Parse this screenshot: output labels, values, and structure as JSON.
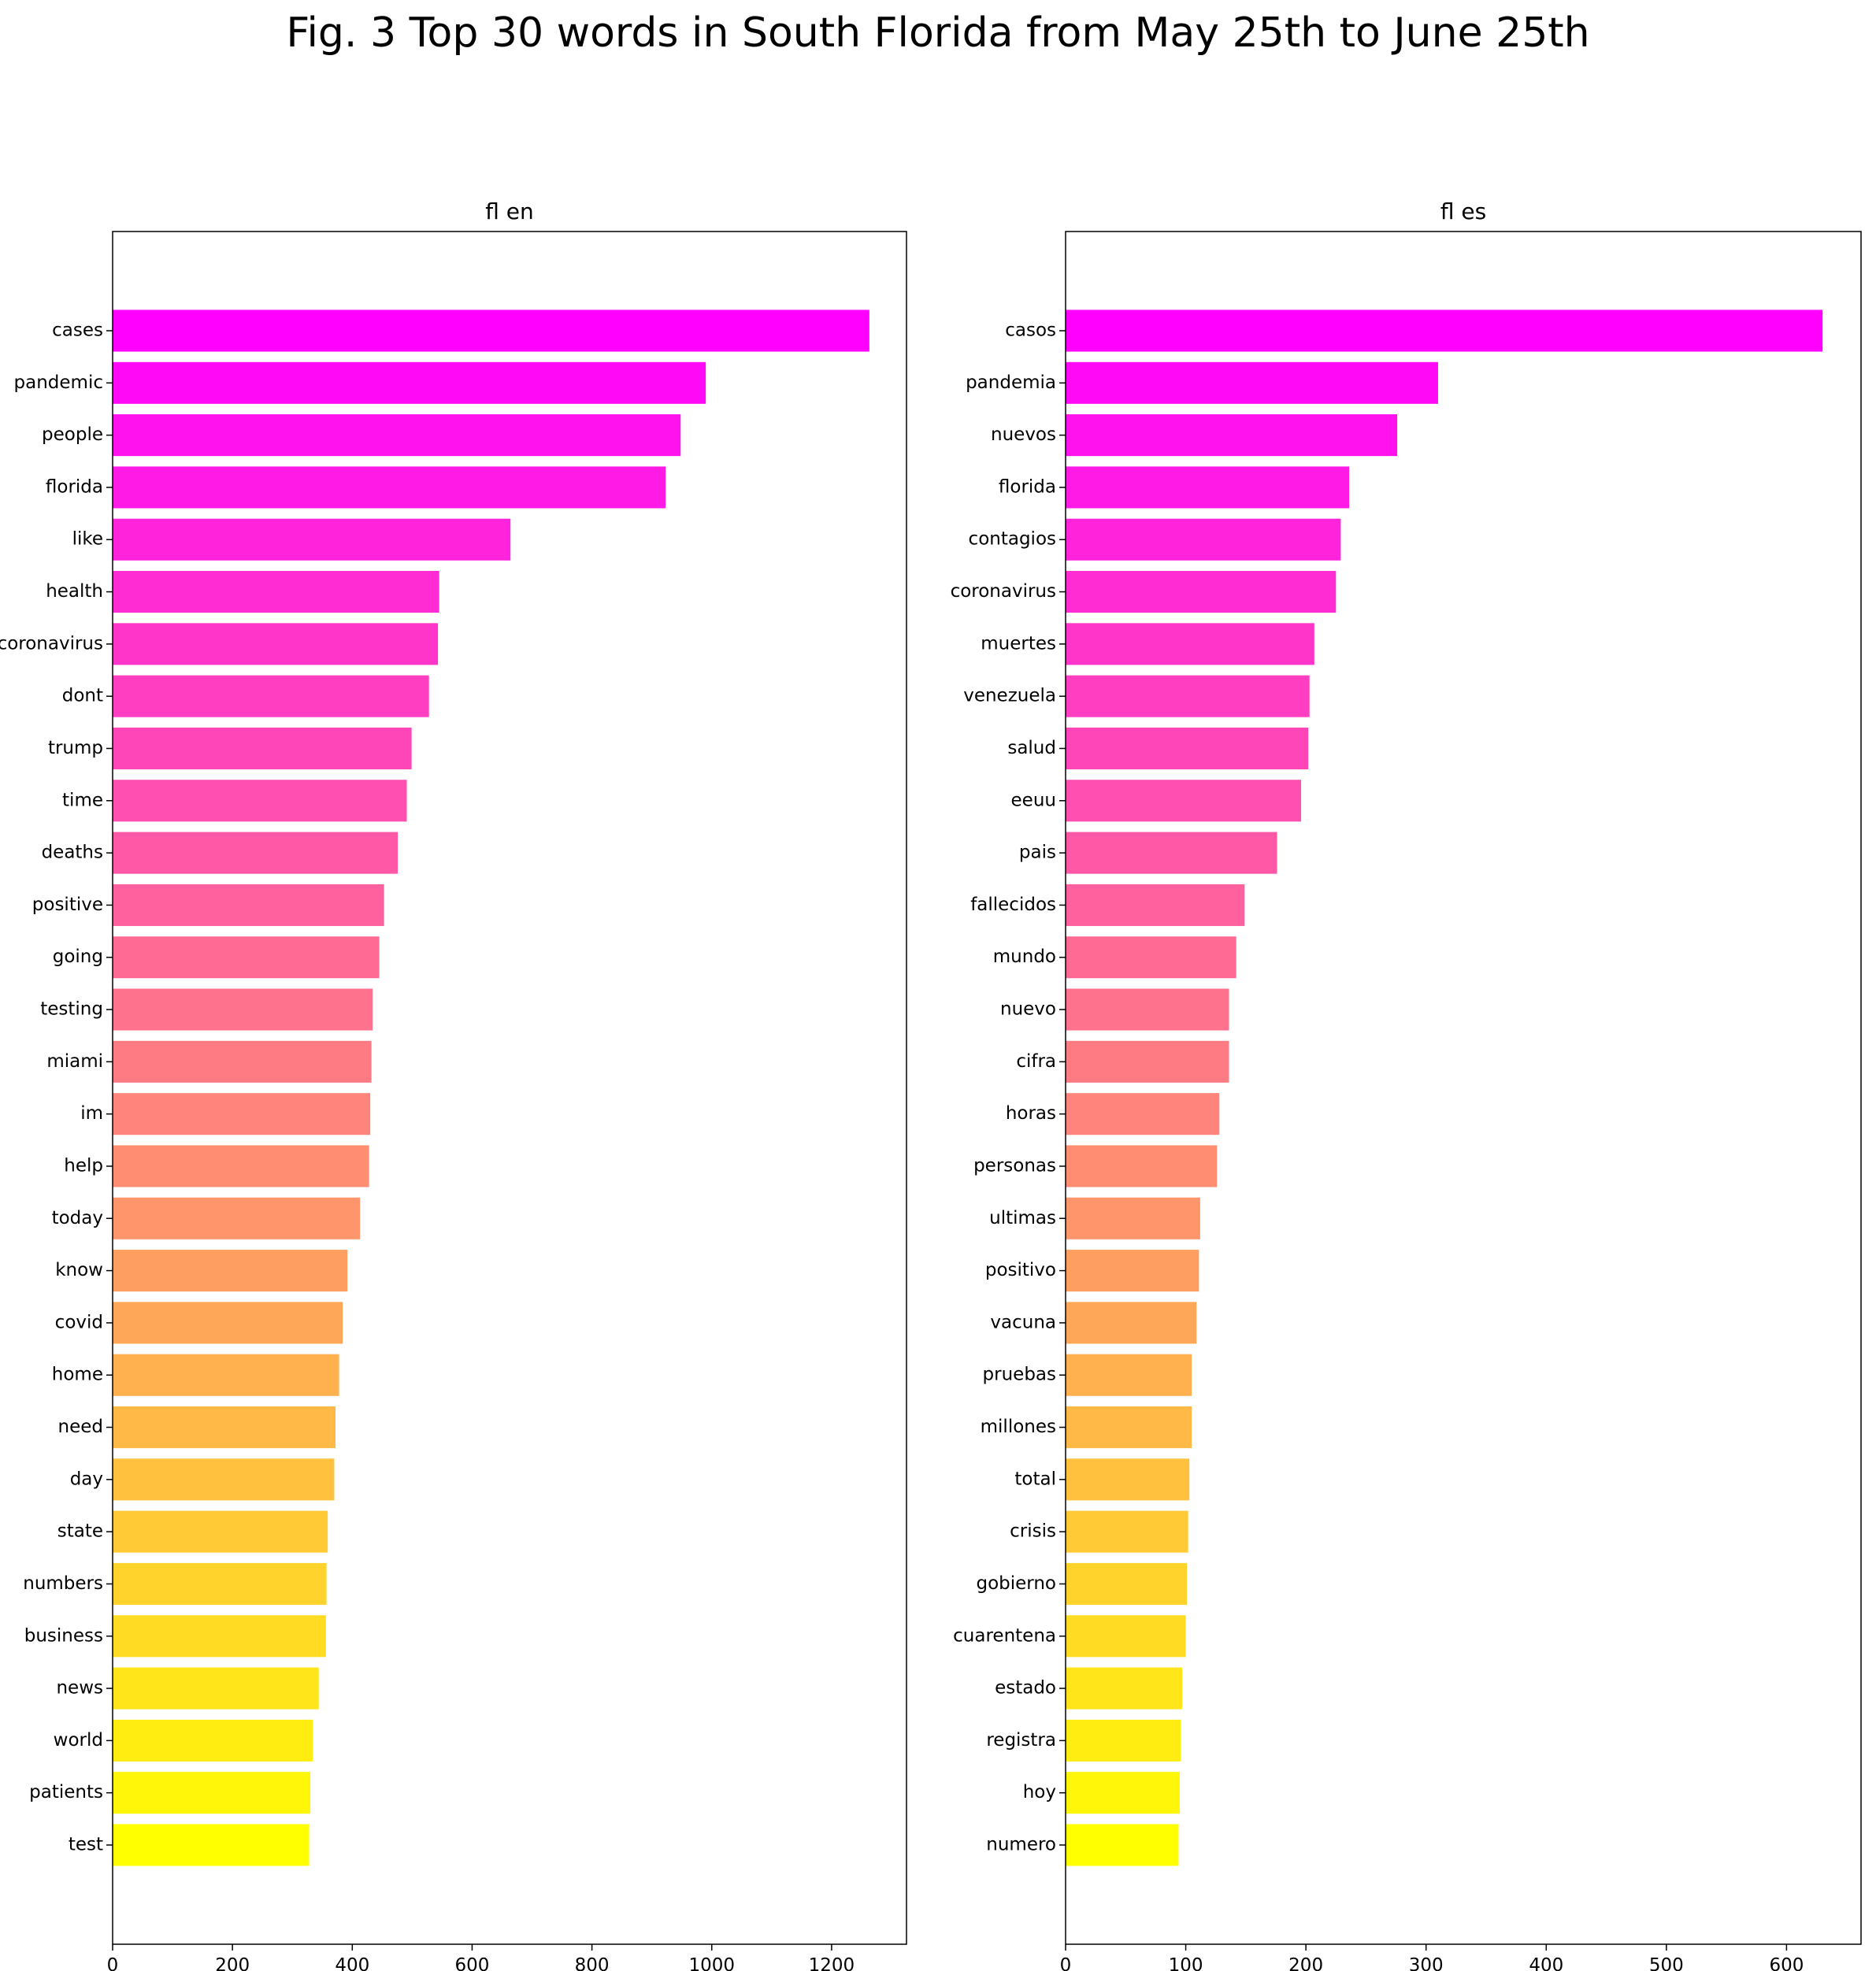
{
  "title": "Fig. 3 Top 30 words in South Florida from May 25th to June 25th",
  "chart_data": [
    {
      "type": "barh",
      "title": "fl en",
      "categories": [
        "cases",
        "pandemic",
        "people",
        "florida",
        "like",
        "health",
        "coronavirus",
        "dont",
        "trump",
        "time",
        "deaths",
        "positive",
        "going",
        "testing",
        "miami",
        "im",
        "help",
        "today",
        "know",
        "covid",
        "home",
        "need",
        "day",
        "state",
        "numbers",
        "business",
        "news",
        "world",
        "patients",
        "test"
      ],
      "values": [
        1263,
        990,
        948,
        923,
        664,
        545,
        543,
        528,
        499,
        491,
        476,
        453,
        445,
        434,
        432,
        430,
        428,
        413,
        392,
        384,
        378,
        372,
        370,
        359,
        357,
        356,
        344,
        334,
        330,
        328
      ],
      "colors": [
        "#ff00ff",
        "#ff09f6",
        "#ff12ed",
        "#ff1ae5",
        "#ff23dc",
        "#ff2cd3",
        "#ff35ca",
        "#ff3ec1",
        "#ff46b9",
        "#ff4fb0",
        "#ff58a7",
        "#ff619e",
        "#ff6a95",
        "#ff728d",
        "#ff7b84",
        "#ff847b",
        "#ff8d72",
        "#ff956a",
        "#ff9e61",
        "#ffa758",
        "#ffb04f",
        "#ffb946",
        "#ffc13e",
        "#ffca35",
        "#ffd32c",
        "#ffdc23",
        "#ffe51a",
        "#ffed12",
        "#fff609",
        "#ffff00"
      ],
      "xlim": [
        0,
        1325
      ],
      "xticks": [
        0,
        200,
        400,
        600,
        800,
        1000,
        1200
      ]
    },
    {
      "type": "barh",
      "title": "fl es",
      "categories": [
        "casos",
        "pandemia",
        "nuevos",
        "florida",
        "contagios",
        "coronavirus",
        "muertes",
        "venezuela",
        "salud",
        "eeuu",
        "pais",
        "fallecidos",
        "mundo",
        "nuevo",
        "cifra",
        "horas",
        "personas",
        "ultimas",
        "positivo",
        "vacuna",
        "pruebas",
        "millones",
        "total",
        "crisis",
        "gobierno",
        "cuarentena",
        "estado",
        "registra",
        "hoy",
        "numero"
      ],
      "values": [
        630,
        310,
        276,
        236,
        229,
        225,
        207,
        203,
        202,
        196,
        176,
        149,
        142,
        136,
        136,
        128,
        126,
        112,
        111,
        109,
        105,
        105,
        103,
        102,
        101,
        100,
        97,
        96,
        95,
        94
      ],
      "colors": [
        "#ff00ff",
        "#ff09f6",
        "#ff12ed",
        "#ff1ae5",
        "#ff23dc",
        "#ff2cd3",
        "#ff35ca",
        "#ff3ec1",
        "#ff46b9",
        "#ff4fb0",
        "#ff58a7",
        "#ff619e",
        "#ff6a95",
        "#ff728d",
        "#ff7b84",
        "#ff847b",
        "#ff8d72",
        "#ff956a",
        "#ff9e61",
        "#ffa758",
        "#ffb04f",
        "#ffb946",
        "#ffc13e",
        "#ffca35",
        "#ffd32c",
        "#ffdc23",
        "#ffe51a",
        "#ffed12",
        "#fff609",
        "#ffff00"
      ],
      "xlim": [
        0,
        662
      ],
      "xticks": [
        0,
        100,
        200,
        300,
        400,
        500,
        600
      ]
    }
  ]
}
